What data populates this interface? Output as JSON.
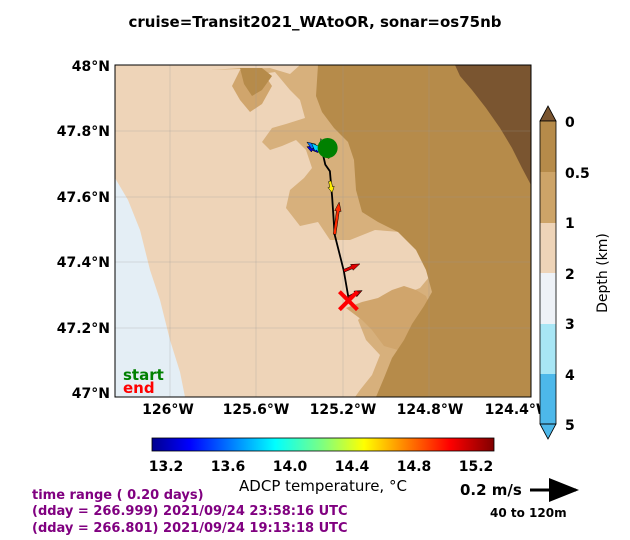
{
  "header": {
    "title": "cruise=Transit2021_WAtoOR,   sonar=os75nb"
  },
  "map": {
    "lat_ticks": [
      "48°N",
      "47.8°N",
      "47.6°N",
      "47.4°N",
      "47.2°N",
      "47°N"
    ],
    "lon_ticks": [
      "126°W",
      "125.6°W",
      "125.2°W",
      "124.8°W",
      "124.4°W"
    ],
    "start_label": "start",
    "end_label": "end",
    "colors": {
      "start": "#008000",
      "end": "#ff0000",
      "track": "#000000"
    }
  },
  "depth_colorbar": {
    "label": "Depth (km)",
    "ticks": [
      "0",
      "0.5",
      "1",
      "2",
      "3",
      "4",
      "5"
    ],
    "colors": [
      "#b68b4a",
      "#cda468",
      "#eed4b8",
      "#eef2f7",
      "#a8e6f5",
      "#4db8ea"
    ]
  },
  "temp_colorbar": {
    "label": "ADCP temperature, °C",
    "ticks": [
      "13.2",
      "13.6",
      "14.0",
      "14.4",
      "14.8",
      "15.2"
    ],
    "range": [
      13.2,
      15.3
    ]
  },
  "info": {
    "time_range": "time range ( 0.20 days)",
    "end_time": "(dday = 266.999) 2021/09/24 23:58:16 UTC",
    "start_time": "(dday = 266.801) 2021/09/24 19:13:18 UTC"
  },
  "scale": {
    "speed": "0.2 m/s",
    "depth_range": "40 to 120m"
  },
  "chart_data": {
    "type": "scatter",
    "title": "cruise=Transit2021_WAtoOR,   sonar=os75nb",
    "xlabel": "",
    "ylabel": "",
    "xlim": [
      -126.2,
      -124.4
    ],
    "ylim": [
      47.0,
      48.0
    ],
    "track": {
      "lon": [
        -125.31,
        -125.29,
        -125.27,
        -125.26,
        -125.25,
        -125.21,
        -125.19
      ],
      "lat": [
        47.76,
        47.7,
        47.68,
        47.6,
        47.49,
        47.38,
        47.3
      ]
    },
    "start": {
      "lon": -125.28,
      "lat": 47.75
    },
    "end": {
      "lon": -125.19,
      "lat": 47.29
    },
    "vectors": [
      {
        "lon": -125.32,
        "lat": 47.74,
        "u": -0.05,
        "v": 0.02,
        "temp": 13.4
      },
      {
        "lon": -125.31,
        "lat": 47.74,
        "u": -0.06,
        "v": 0.04,
        "temp": 13.7
      },
      {
        "lon": -125.3,
        "lat": 47.73,
        "u": -0.05,
        "v": 0.05,
        "temp": 13.9
      },
      {
        "lon": -125.29,
        "lat": 47.73,
        "u": -0.02,
        "v": 0.07,
        "temp": 14.2
      },
      {
        "lon": -125.28,
        "lat": 47.72,
        "u": 0.02,
        "v": 0.04,
        "temp": 14.5
      },
      {
        "lon": -125.27,
        "lat": 47.65,
        "u": 0.01,
        "v": -0.05,
        "temp": 14.55
      },
      {
        "lon": -125.25,
        "lat": 47.49,
        "u": 0.02,
        "v": 0.14,
        "temp": 14.95
      },
      {
        "lon": -125.21,
        "lat": 47.38,
        "u": 0.07,
        "v": 0.03,
        "temp": 15.1
      },
      {
        "lon": -125.19,
        "lat": 47.3,
        "u": 0.06,
        "v": 0.03,
        "temp": 15.25
      }
    ]
  }
}
